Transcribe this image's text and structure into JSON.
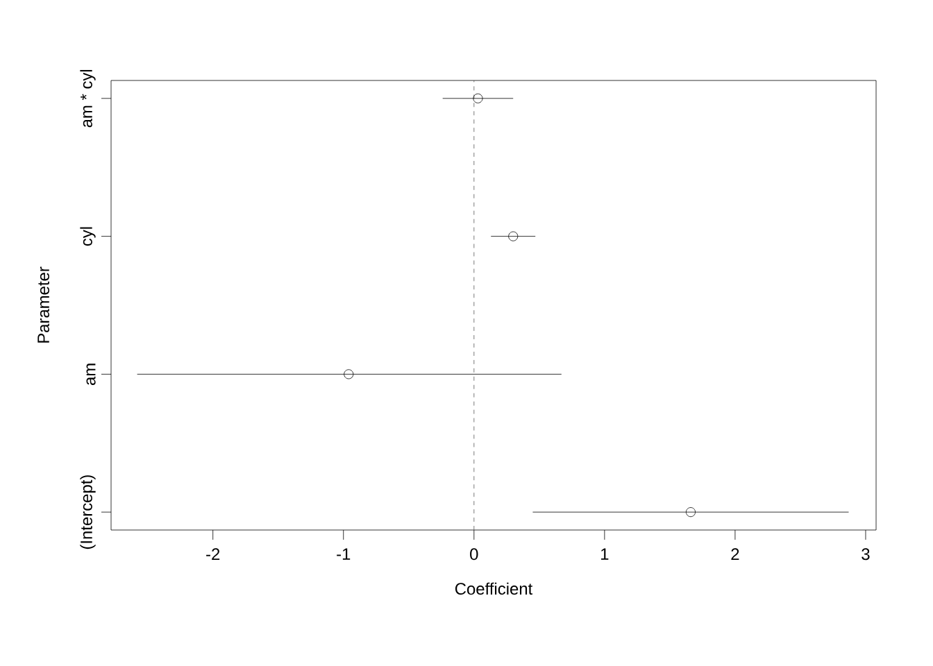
{
  "chart_data": {
    "type": "scatter",
    "orientation": "horizontal",
    "xlabel": "Coefficient",
    "ylabel": "Parameter",
    "categories": [
      "am * cyl",
      "cyl",
      "am",
      "(Intercept)"
    ],
    "values": [
      0.03,
      0.3,
      -0.96,
      1.66
    ],
    "errors": [
      [
        -0.24,
        0.3
      ],
      [
        0.13,
        0.47
      ],
      [
        -2.58,
        0.67
      ],
      [
        0.45,
        2.87
      ]
    ],
    "color": "#000000",
    "marker": "circle",
    "xlim": [
      -2.78,
      3.08
    ],
    "xticks": [
      -2,
      -1,
      0,
      1,
      2,
      3
    ],
    "ref_lines": [
      {
        "axis": "x",
        "value": 0,
        "color": "#555555",
        "line_style": "dashed"
      }
    ]
  }
}
